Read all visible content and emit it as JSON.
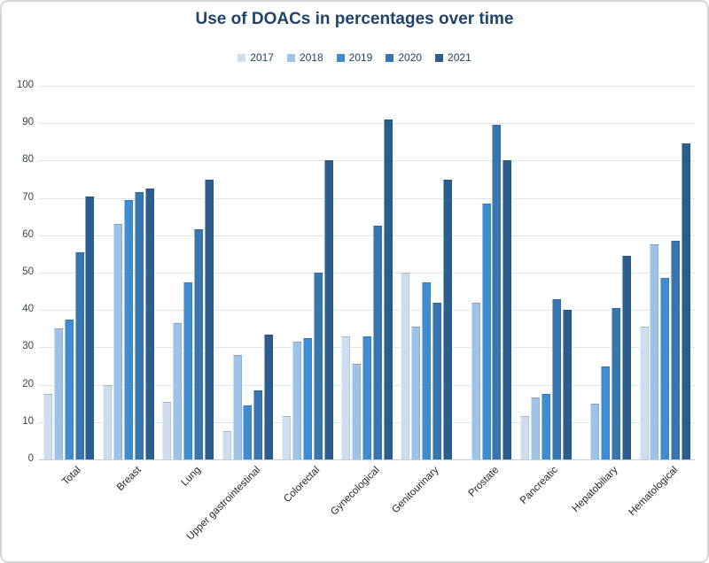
{
  "chart_data": {
    "type": "bar",
    "title": "Use of DOACs in percentages over time",
    "xlabel": "",
    "ylabel": "",
    "ylim": [
      0,
      100
    ],
    "yticks": [
      0,
      10,
      20,
      30,
      40,
      50,
      60,
      70,
      80,
      90,
      100
    ],
    "grid": true,
    "legend_position": "top",
    "categories": [
      "Total",
      "Breast",
      "Lung",
      "Upper gastrointestinal",
      "Colorectal",
      "Gynecological",
      "Genitourinary",
      "Prostate",
      "Pancreatic",
      "Hepatobiliary",
      "Hematological"
    ],
    "series": [
      {
        "name": "2017",
        "color": "#cfdeee",
        "values": [
          17.5,
          20,
          15.5,
          7.5,
          11.5,
          33,
          50,
          null,
          11.5,
          null,
          35.5
        ]
      },
      {
        "name": "2018",
        "color": "#9fc3e7",
        "values": [
          35,
          63,
          36.5,
          28,
          31.5,
          25.5,
          35.5,
          42,
          16.5,
          15,
          57.5
        ]
      },
      {
        "name": "2019",
        "color": "#3f8cd0",
        "values": [
          37.5,
          69.5,
          47.5,
          14.5,
          32.5,
          33,
          47.5,
          68.5,
          17.5,
          25,
          48.5
        ]
      },
      {
        "name": "2020",
        "color": "#3876b0",
        "values": [
          55.5,
          71.5,
          61.5,
          18.5,
          50,
          62.5,
          42,
          89.5,
          43,
          40.5,
          58.5
        ]
      },
      {
        "name": "2021",
        "color": "#2b5e8e",
        "values": [
          70.5,
          72.5,
          75,
          33.5,
          80,
          91,
          75,
          80,
          40,
          54.5,
          84.5
        ]
      }
    ]
  }
}
